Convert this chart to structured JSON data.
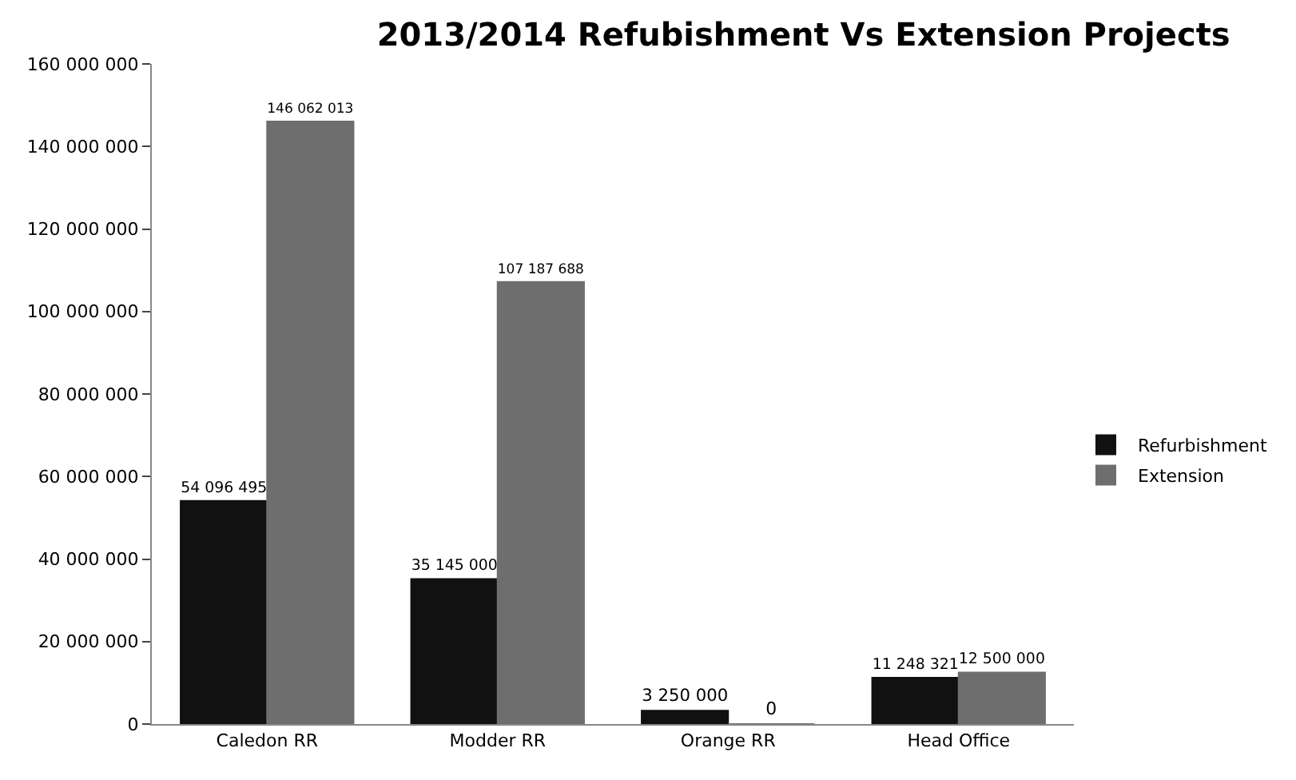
{
  "chart_data": {
    "type": "bar",
    "title": "2013/2014 Refubishment Vs Extension Projects",
    "categories": [
      "Caledon RR",
      "Modder RR",
      "Orange RR",
      "Head Office"
    ],
    "series": [
      {
        "name": "Refurbishment",
        "color": "#111111",
        "values": [
          54096495,
          35145000,
          3250000,
          11248321
        ]
      },
      {
        "name": "Extension",
        "color": "#6e6e6e",
        "values": [
          146062013,
          107187688,
          0,
          12500000
        ]
      }
    ],
    "ylim": [
      0,
      160000000
    ],
    "yticks": [
      0,
      {
        "value": 20000000,
        "label": "20 000 000"
      },
      {
        "value": 40000000,
        "label": "40 000 000"
      },
      {
        "value": 60000000,
        "label": "60 000 000"
      },
      {
        "value": 80000000,
        "label": "80 000 000"
      },
      {
        "value": 100000000,
        "label": "100 000 000"
      },
      {
        "value": 120000000,
        "label": "120 000 000"
      },
      {
        "value": 140000000,
        "label": "140 000 000"
      },
      {
        "value": 160000000,
        "label": "160 000 000"
      }
    ],
    "data_labels": true,
    "grid": false,
    "legend": "right"
  }
}
